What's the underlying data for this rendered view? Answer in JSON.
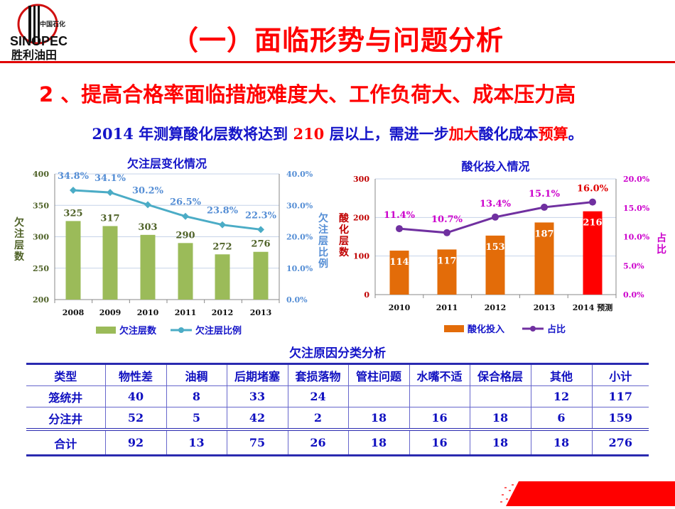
{
  "logo": {
    "text_top": "中国石化",
    "text_brand": "SINOPEC",
    "text_bottom": "胜利油田"
  },
  "title": "（一）面临形势与问题分析",
  "subtitle": "2 、提高合格率面临措施难度大、工作负荷大、成本压力高",
  "statement": {
    "p1": "2014",
    "p2": " 年测算酸化层数将达到 ",
    "p3": "210",
    "p4": " 层以上，需进一步",
    "p5": "加大",
    "p6": "酸化成本",
    "p7": "预算",
    "p8": "。"
  },
  "colors": {
    "title": "#ff0000",
    "chart_title": "#1414c8",
    "bar_green": "#9bbb59",
    "line_teal": "#4bacc6",
    "bar_orange": "#e36c09",
    "bar_red": "#ff0000",
    "line_purple": "#7030a0",
    "pct_magenta": "#cc00cc"
  },
  "chart_data": [
    {
      "type": "bar+line",
      "title": "欠注层变化情况",
      "categories": [
        "2008",
        "2009",
        "2010",
        "2011",
        "2012",
        "2013"
      ],
      "series": [
        {
          "name": "欠注层数",
          "type": "bar",
          "axis": "left",
          "values": [
            325,
            317,
            303,
            290,
            272,
            276
          ]
        },
        {
          "name": "欠注层比例",
          "type": "line",
          "axis": "right",
          "values": [
            34.8,
            34.1,
            30.2,
            26.5,
            23.8,
            22.3
          ]
        }
      ],
      "ylabel": "欠注层数",
      "ylabel_right": "欠注层比例",
      "ylim": [
        200,
        400
      ],
      "yticks": [
        "200",
        "250",
        "300",
        "350",
        "400"
      ],
      "ylim_right": [
        0,
        40
      ],
      "yticks_right": [
        "0.0%",
        "10.0%",
        "20.0%",
        "30.0%",
        "40.0%"
      ],
      "legend": "bottom",
      "grid": true
    },
    {
      "type": "bar+line",
      "title": "酸化投入情况",
      "categories": [
        "2010",
        "2011",
        "2012",
        "2013",
        "2014 预测"
      ],
      "series": [
        {
          "name": "酸化投入",
          "type": "bar",
          "axis": "left",
          "values": [
            114,
            117,
            153,
            187,
            216
          ]
        },
        {
          "name": "占比",
          "type": "line",
          "axis": "right",
          "values": [
            11.4,
            10.7,
            13.4,
            15.1,
            16.0
          ]
        }
      ],
      "ylabel": "酸化层数",
      "ylabel_right": "占比",
      "ylim": [
        0,
        300
      ],
      "yticks": [
        "0",
        "100",
        "200",
        "300"
      ],
      "ylim_right": [
        0,
        20
      ],
      "yticks_right": [
        "0.0%",
        "5.0%",
        "10.0%",
        "15.0%",
        "20.0%"
      ],
      "legend": "bottom",
      "grid": true
    }
  ],
  "table": {
    "title": "欠注原因分类分析",
    "headers": [
      "类型",
      "物性差",
      "油稠",
      "后期堵塞",
      "套损落物",
      "管柱问题",
      "水嘴不适",
      "保合格层",
      "其他",
      "小计"
    ],
    "rows": [
      [
        "笼统井",
        "40",
        "8",
        "33",
        "24",
        "",
        "",
        "",
        "12",
        "117"
      ],
      [
        "分注井",
        "52",
        "5",
        "42",
        "2",
        "18",
        "16",
        "18",
        "6",
        "159"
      ]
    ],
    "total": [
      "合计",
      "92",
      "13",
      "75",
      "26",
      "18",
      "16",
      "18",
      "18",
      "276"
    ]
  }
}
